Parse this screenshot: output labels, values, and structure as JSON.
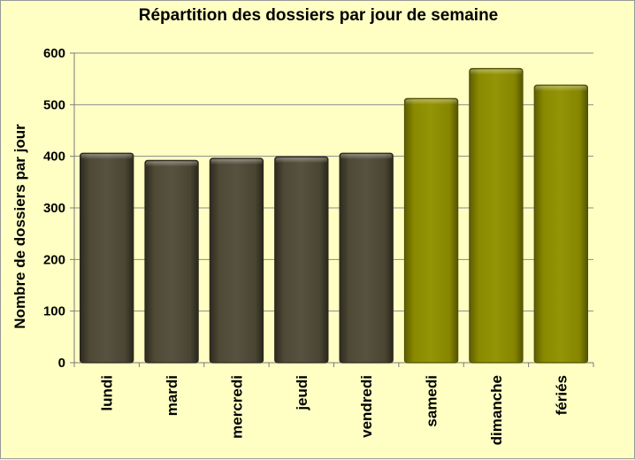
{
  "chart_data": {
    "type": "bar",
    "title": "Répartition des dossiers par jour de semaine",
    "ylabel": "Nombre de dossiers  par jour",
    "xlabel": "",
    "ylim": [
      0,
      600
    ],
    "yticks": [
      0,
      100,
      200,
      300,
      400,
      500,
      600
    ],
    "grid": true,
    "categories": [
      "lundi",
      "mardi",
      "mercredi",
      "jeudi",
      "vendredi",
      "samedi",
      "dimanche",
      "fériés"
    ],
    "values": [
      406,
      392,
      396,
      399,
      406,
      512,
      570,
      538
    ],
    "colors": {
      "weekday": "#4f4a36",
      "weekend": "#8a8a00",
      "background": "#ffffc4",
      "grid": "#8a8a8a"
    },
    "bar_groups": [
      "weekday",
      "weekday",
      "weekday",
      "weekday",
      "weekday",
      "weekend",
      "weekend",
      "weekend"
    ]
  }
}
